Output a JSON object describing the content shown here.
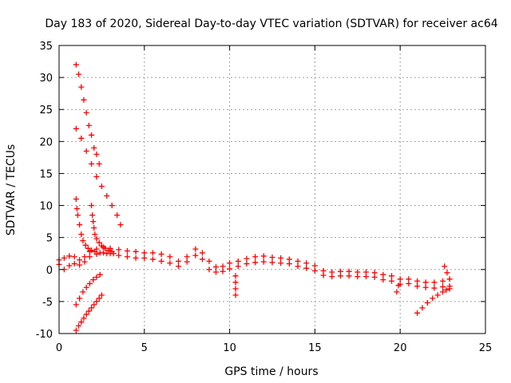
{
  "chart_data": {
    "type": "scatter",
    "title": "Day 183 of 2020, Sidereal Day-to-day VTEC variation (SDTVAR) for receiver ac64",
    "xlabel": "GPS time / hours",
    "ylabel": "SDTVAR / TECUs",
    "xlim": [
      0,
      25
    ],
    "ylim": [
      -10,
      35
    ],
    "xticks": [
      0,
      5,
      10,
      15,
      20,
      25
    ],
    "yticks": [
      -10,
      -5,
      0,
      5,
      10,
      15,
      20,
      25,
      30,
      35
    ],
    "grid": true,
    "marker": "+",
    "color": "#ff0000",
    "series": [
      {
        "name": "arc-main-upper",
        "x": [
          0.0,
          0.3,
          0.6,
          0.9,
          1.2,
          1.5,
          1.8,
          2.2,
          2.6,
          3.0,
          3.5,
          4.0,
          4.5,
          5.0,
          5.5,
          6.0,
          6.5,
          7.0,
          7.5,
          8.0,
          8.4,
          8.8,
          9.2,
          9.6,
          10.0,
          10.5,
          11.0,
          11.5,
          12.0,
          12.5,
          13.0,
          13.5,
          14.0,
          14.5,
          15.0,
          15.5,
          16.0,
          16.5,
          17.0,
          17.5,
          18.0,
          18.5,
          19.0,
          19.5,
          20.0,
          20.5,
          21.0,
          21.5,
          22.0,
          22.5,
          22.9
        ],
        "y": [
          1.5,
          1.8,
          2.1,
          2.0,
          1.5,
          2.0,
          2.8,
          3.2,
          3.5,
          3.3,
          3.1,
          2.9,
          2.8,
          2.6,
          2.6,
          2.4,
          2.0,
          1.3,
          2.0,
          3.2,
          2.6,
          1.3,
          0.4,
          0.5,
          1.0,
          1.3,
          1.7,
          2.0,
          2.1,
          1.9,
          1.8,
          1.6,
          1.3,
          1.0,
          0.6,
          -0.2,
          -0.4,
          -0.3,
          -0.3,
          -0.4,
          -0.4,
          -0.5,
          -0.8,
          -1.0,
          -1.5,
          -1.5,
          -1.8,
          -2.0,
          -2.0,
          -1.8,
          -1.5
        ]
      },
      {
        "name": "arc-main-lower",
        "x": [
          0.0,
          0.3,
          0.6,
          0.9,
          1.2,
          1.5,
          1.8,
          2.2,
          2.6,
          3.0,
          3.5,
          4.0,
          4.5,
          5.0,
          5.5,
          6.0,
          6.5,
          7.0,
          7.5,
          8.0,
          8.4,
          8.8,
          9.2,
          9.6,
          10.0,
          10.5,
          11.0,
          11.5,
          12.0,
          12.5,
          13.0,
          13.5,
          14.0,
          14.5,
          15.0,
          15.5,
          16.0,
          16.5,
          17.0,
          17.5,
          18.0,
          18.5,
          19.0,
          19.5,
          20.0,
          20.5,
          21.0,
          21.5,
          22.0,
          22.5,
          22.9
        ],
        "y": [
          0.8,
          0.0,
          0.6,
          0.9,
          0.7,
          1.2,
          2.0,
          2.4,
          2.6,
          2.5,
          2.2,
          2.0,
          1.8,
          1.8,
          1.6,
          1.3,
          1.0,
          0.5,
          1.2,
          2.2,
          1.6,
          0.0,
          -0.4,
          -0.3,
          0.1,
          0.5,
          0.9,
          1.1,
          1.2,
          1.1,
          1.0,
          0.9,
          0.5,
          0.2,
          -0.2,
          -0.9,
          -1.1,
          -1.0,
          -1.0,
          -1.1,
          -1.1,
          -1.2,
          -1.6,
          -1.8,
          -2.3,
          -2.2,
          -2.6,
          -2.8,
          -2.9,
          -2.7,
          -2.6
        ]
      },
      {
        "name": "arc-steep",
        "x": [
          1.0,
          1.15,
          1.3,
          1.45,
          1.6,
          1.75,
          1.9,
          2.05,
          2.2,
          2.35
        ],
        "y": [
          32.0,
          30.5,
          28.5,
          26.5,
          24.5,
          22.5,
          21.0,
          19.0,
          18.0,
          16.5
        ]
      },
      {
        "name": "arc-decay",
        "x": [
          1.0,
          1.3,
          1.6,
          1.9,
          2.2,
          2.5,
          2.8,
          3.1,
          3.4,
          3.6
        ],
        "y": [
          22.0,
          20.5,
          18.5,
          16.5,
          14.5,
          13.0,
          11.5,
          10.0,
          8.5,
          7.0
        ]
      },
      {
        "name": "arc-mid-1",
        "x": [
          1.0,
          1.05,
          1.1,
          1.2,
          1.3,
          1.4,
          1.55,
          1.7,
          1.9,
          2.1,
          2.4,
          2.8,
          3.2
        ],
        "y": [
          11.0,
          9.5,
          8.5,
          7.0,
          5.5,
          4.5,
          3.8,
          3.3,
          3.0,
          2.8,
          2.6,
          2.5,
          2.5
        ]
      },
      {
        "name": "arc-mid-2",
        "x": [
          1.9,
          1.95,
          2.0,
          2.05,
          2.1,
          2.2,
          2.35,
          2.5,
          2.7,
          2.9,
          3.1
        ],
        "y": [
          10.0,
          8.5,
          7.5,
          6.5,
          5.5,
          4.8,
          4.2,
          3.7,
          3.3,
          3.0,
          2.8
        ]
      },
      {
        "name": "arc-neg-1",
        "x": [
          1.0,
          1.2,
          1.4,
          1.6,
          1.8,
          2.0,
          2.2,
          2.4
        ],
        "y": [
          -5.5,
          -4.5,
          -3.5,
          -2.8,
          -2.2,
          -1.6,
          -1.2,
          -0.8
        ]
      },
      {
        "name": "arc-neg-2",
        "x": [
          1.0,
          1.15,
          1.3,
          1.45,
          1.6,
          1.75,
          1.9,
          2.05,
          2.2,
          2.35,
          2.5
        ],
        "y": [
          -9.5,
          -8.8,
          -8.2,
          -7.6,
          -7.0,
          -6.5,
          -6.0,
          -5.5,
          -5.0,
          -4.5,
          -4.0
        ]
      },
      {
        "name": "arc-late",
        "x": [
          21.0,
          21.3,
          21.6,
          21.9,
          22.2,
          22.5,
          22.7,
          22.9
        ],
        "y": [
          -6.8,
          -6.0,
          -5.2,
          -4.5,
          -4.0,
          -3.5,
          -3.2,
          -3.0
        ]
      },
      {
        "name": "outliers",
        "x": [
          10.35,
          10.35,
          10.35,
          10.35,
          19.8,
          19.9,
          22.6,
          22.75
        ],
        "y": [
          -1.0,
          -2.0,
          -3.0,
          -4.0,
          -3.5,
          -2.5,
          0.5,
          -0.5
        ]
      }
    ]
  }
}
